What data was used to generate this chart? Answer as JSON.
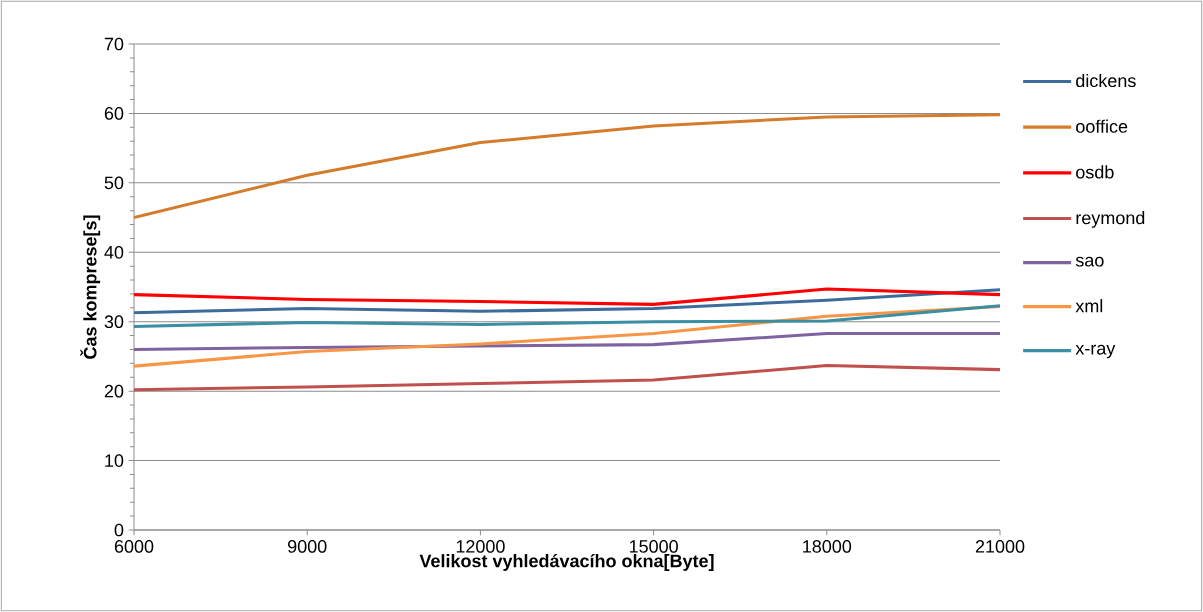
{
  "chart_data": {
    "type": "line",
    "xlabel": "Velikost vyhledávacího okna[Byte]",
    "ylabel": "Čas komprese[s]",
    "x": [
      6000,
      9000,
      12000,
      15000,
      18000,
      21000
    ],
    "xlim": [
      6000,
      21000
    ],
    "xticks": [
      6000,
      9000,
      12000,
      15000,
      18000,
      21000
    ],
    "ylim": [
      0,
      70
    ],
    "yticks": [
      0,
      10,
      20,
      30,
      40,
      50,
      60,
      70
    ],
    "grid": "y",
    "legend": "right",
    "marker": "none",
    "line_style": "solid",
    "series": [
      {
        "name": "dickens",
        "color": "#3d6b9c",
        "values": [
          31.3,
          31.9,
          31.5,
          31.9,
          33.1,
          34.6
        ]
      },
      {
        "name": "ooffice",
        "color": "#d57b2c",
        "values": [
          45,
          51.1,
          55.8,
          58.2,
          59.5,
          59.8
        ]
      },
      {
        "name": "osdb",
        "color": "#ff0000",
        "values": [
          33.9,
          33.2,
          32.9,
          32.5,
          34.7,
          33.9
        ]
      },
      {
        "name": "reymond",
        "color": "#c0504d",
        "values": [
          20.2,
          20.6,
          21.1,
          21.6,
          23.7,
          23.1
        ]
      },
      {
        "name": "sao",
        "color": "#7f63a1",
        "values": [
          26.0,
          26.3,
          26.5,
          26.7,
          28.3,
          28.3
        ]
      },
      {
        "name": "xml",
        "color": "#f79646",
        "values": [
          23.6,
          25.7,
          26.8,
          28.3,
          30.8,
          32.2
        ]
      },
      {
        "name": "x-ray",
        "color": "#3a8fa3",
        "values": [
          29.3,
          29.9,
          29.6,
          30.0,
          30.1,
          32.3
        ]
      }
    ]
  }
}
